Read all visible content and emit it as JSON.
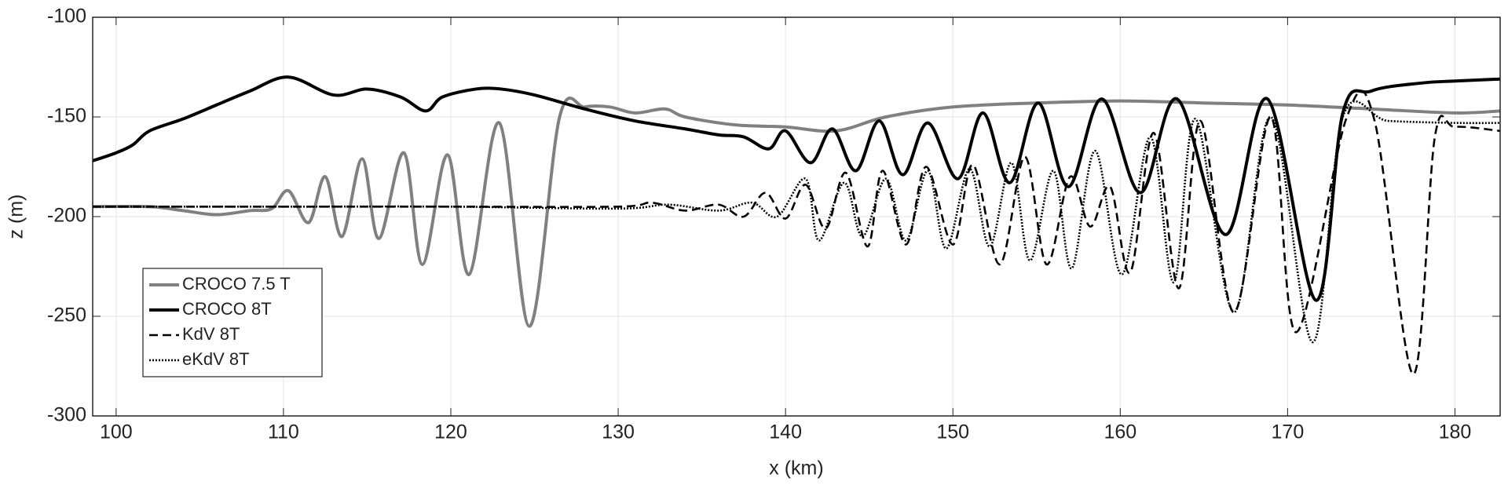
{
  "chart_data": {
    "type": "line",
    "xlabel": "x (km)",
    "ylabel": "z (m)",
    "xlim": [
      98.6,
      182.7
    ],
    "ylim": [
      -300,
      -100
    ],
    "xticks": [
      100,
      110,
      120,
      130,
      140,
      150,
      160,
      170,
      180
    ],
    "yticks": [
      -300,
      -250,
      -200,
      -150,
      -100
    ],
    "grid": true,
    "legend": "lower left",
    "series": [
      {
        "name": "CROCO 7.5 T",
        "color": "#808080",
        "line_style": "solid",
        "x": [
          98.6,
          102,
          104,
          106,
          108,
          109.3,
          110.3,
          111.5,
          112.5,
          113.5,
          114.7,
          115.7,
          117.2,
          118.3,
          119.8,
          121.1,
          122.9,
          124.7,
          126.5,
          128,
          129.5,
          131,
          132.8,
          134,
          137,
          140,
          143,
          146,
          150,
          155,
          160,
          165,
          170,
          175,
          180,
          182.7
        ],
        "values": [
          -195,
          -195,
          -197,
          -199,
          -197,
          -196,
          -187,
          -203,
          -180,
          -210,
          -171,
          -211,
          -168,
          -224,
          -169,
          -229,
          -153,
          -255,
          -150,
          -145,
          -145,
          -148,
          -146,
          -150,
          -154,
          -155,
          -157,
          -150,
          -145,
          -143,
          -142,
          -143,
          -144,
          -146,
          -148,
          -147
        ]
      },
      {
        "name": "CROCO 8T",
        "color": "#000000",
        "line_style": "solid",
        "x": [
          98.6,
          100,
          101,
          102,
          104,
          106,
          108,
          110.3,
          113,
          115,
          117,
          118.5,
          119.5,
          121.5,
          123,
          125,
          128,
          131,
          134,
          136,
          137.5,
          139,
          140,
          141.5,
          142.8,
          144.2,
          145.6,
          147,
          148.5,
          150.3,
          151.8,
          153.4,
          155.1,
          156.9,
          158.9,
          161.2,
          163.4,
          166.3,
          168.8,
          171.7,
          173.3,
          175,
          178,
          180,
          182.7
        ],
        "values": [
          -172,
          -168,
          -164,
          -157,
          -151,
          -144,
          -137,
          -130,
          -139,
          -136,
          -140,
          -147,
          -140,
          -136,
          -136,
          -139,
          -146,
          -152,
          -156,
          -159,
          -160,
          -166,
          -157,
          -173,
          -156,
          -177,
          -152,
          -179,
          -153,
          -181,
          -148,
          -183,
          -143,
          -185,
          -141,
          -188,
          -141,
          -209,
          -141,
          -242,
          -148,
          -137,
          -133,
          -132,
          -131
        ]
      },
      {
        "name": "KdV 8T",
        "color": "#000000",
        "line_style": "dashed",
        "x": [
          98.6,
          110,
          120,
          130,
          132,
          134,
          136,
          137.5,
          138.8,
          140,
          141.2,
          142.4,
          143.6,
          144.9,
          145.8,
          147.2,
          148.4,
          150,
          151.2,
          152.8,
          154.3,
          155.6,
          157,
          158.2,
          159.4,
          160.6,
          162,
          163.5,
          164.8,
          166.8,
          169,
          170.5,
          173.5,
          175.2,
          177.5,
          178.8,
          180,
          182.7
        ],
        "values": [
          -195,
          -195,
          -195,
          -195,
          -193,
          -197,
          -194,
          -200,
          -188,
          -201,
          -184,
          -206,
          -178,
          -215,
          -177,
          -214,
          -175,
          -214,
          -174,
          -224,
          -170,
          -224,
          -180,
          -205,
          -185,
          -228,
          -158,
          -236,
          -152,
          -248,
          -150,
          -258,
          -151,
          -152,
          -279,
          -160,
          -155,
          -157
        ]
      },
      {
        "name": "eKdV 8T",
        "color": "#000000",
        "line_style": "dotted",
        "x": [
          98.6,
          110,
          120,
          130,
          133,
          136,
          138,
          139.5,
          141.2,
          142,
          143.5,
          144.6,
          146,
          147.2,
          148.5,
          149.6,
          151,
          152.2,
          153.5,
          154.6,
          156,
          157.1,
          158.5,
          160.1,
          161.8,
          163.2,
          164.5,
          166.8,
          169,
          171.5,
          173.3,
          176,
          180,
          182.7
        ],
        "values": [
          -195,
          -195,
          -195,
          -196,
          -194,
          -197,
          -193,
          -200,
          -181,
          -212,
          -183,
          -210,
          -181,
          -212,
          -177,
          -216,
          -176,
          -215,
          -173,
          -222,
          -177,
          -226,
          -167,
          -229,
          -160,
          -233,
          -151,
          -248,
          -150,
          -263,
          -150,
          -152,
          -153,
          -153
        ]
      }
    ]
  }
}
